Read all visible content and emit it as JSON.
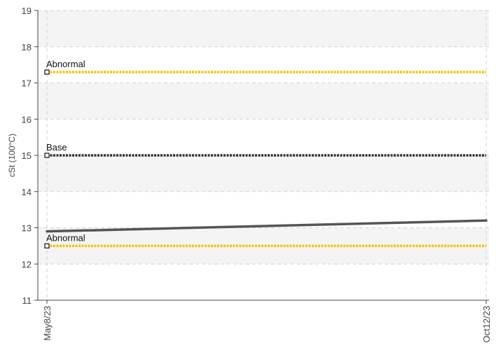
{
  "chart_data": {
    "type": "line",
    "title": "",
    "xlabel": "",
    "ylabel": "cSt (100°C)",
    "ylim": [
      11,
      19
    ],
    "yticks": [
      11,
      12,
      13,
      14,
      15,
      16,
      17,
      18,
      19
    ],
    "x": [
      "May8/23",
      "Oct12/23"
    ],
    "series": [
      {
        "values": [
          12.9,
          13.2
        ],
        "color": "#555555"
      }
    ],
    "reference_lines": [
      {
        "label": "Abnormal",
        "value": 17.3,
        "color": "#f2c400"
      },
      {
        "label": "Base",
        "value": 15.0,
        "color": "#333333"
      },
      {
        "label": "Abnormal",
        "value": 12.5,
        "color": "#f2c400"
      }
    ],
    "grid": true,
    "band_color": "#f4f4f4"
  }
}
